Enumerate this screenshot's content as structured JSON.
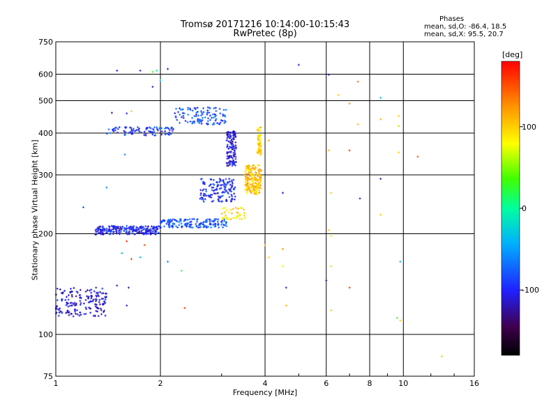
{
  "chart_data": {
    "type": "scatter",
    "title": "Tromsø 20171216 10:14:00-10:15:43",
    "subtitle": "RwPretec (8p)",
    "xlabel": "Frequency [MHz]",
    "ylabel": "Stationary phase Virtual Height [km]",
    "x_scale": "log",
    "y_scale": "log",
    "xlim": [
      1,
      16
    ],
    "ylim": [
      75,
      750
    ],
    "xticks": [
      "1",
      "2",
      "4",
      "6",
      "8",
      "10",
      "16"
    ],
    "yticks": [
      "75",
      "100",
      "200",
      "300",
      "400",
      "500",
      "600",
      "750"
    ],
    "grid": true,
    "phases": {
      "heading": "Phases",
      "o_line": "mean, sd,O: -86.4, 18.5",
      "x_line": "mean, sd,X:  95.5, 20.7"
    },
    "colorbar": {
      "label": "[deg]",
      "ticks": [
        "100",
        "0",
        "-100"
      ],
      "range": [
        -180,
        180
      ]
    },
    "series": [
      {
        "name": "O",
        "phase_mean": -86.4,
        "phase_sd": 18.5
      },
      {
        "name": "X",
        "phase_mean": 95.5,
        "phase_sd": 20.7
      }
    ],
    "traces": [
      {
        "x_range": [
          1.0,
          1.4
        ],
        "y_center": 125,
        "y_spread": 0.1,
        "phase": -110,
        "count": 170
      },
      {
        "x_range": [
          1.3,
          2.0
        ],
        "y_center": 205,
        "y_spread": 0.03,
        "phase": -100,
        "count": 220
      },
      {
        "x_range": [
          2.0,
          3.1
        ],
        "y_center": 215,
        "y_spread": 0.03,
        "phase": -80,
        "count": 160
      },
      {
        "x_range": [
          2.6,
          3.3
        ],
        "y_center": 270,
        "y_spread": 0.08,
        "phase": -95,
        "count": 140
      },
      {
        "x_range": [
          3.1,
          3.3
        ],
        "y_center": 360,
        "y_spread": 0.12,
        "phase": -110,
        "count": 130
      },
      {
        "x_range": [
          1.4,
          2.2
        ],
        "y_center": 405,
        "y_spread": 0.03,
        "phase": -90,
        "count": 90
      },
      {
        "x_range": [
          2.2,
          3.1
        ],
        "y_center": 450,
        "y_spread": 0.06,
        "phase": -80,
        "count": 110
      },
      {
        "x_range": [
          3.5,
          3.9
        ],
        "y_center": 290,
        "y_spread": 0.1,
        "phase": 105,
        "count": 200
      },
      {
        "x_range": [
          3.8,
          3.9
        ],
        "y_center": 380,
        "y_spread": 0.1,
        "phase": 100,
        "count": 60
      },
      {
        "x_range": [
          3.0,
          3.5
        ],
        "y_center": 230,
        "y_spread": 0.04,
        "phase": 90,
        "count": 40
      }
    ],
    "scattered_points": [
      {
        "x": 1.5,
        "y": 615,
        "phase": -110
      },
      {
        "x": 1.75,
        "y": 615,
        "phase": -100
      },
      {
        "x": 1.9,
        "y": 610,
        "phase": 40
      },
      {
        "x": 1.95,
        "y": 615,
        "phase": 0
      },
      {
        "x": 2.1,
        "y": 622,
        "phase": -110
      },
      {
        "x": 1.9,
        "y": 550,
        "phase": -120
      },
      {
        "x": 2.0,
        "y": 575,
        "phase": -30
      },
      {
        "x": 5.0,
        "y": 640,
        "phase": -110
      },
      {
        "x": 6.1,
        "y": 598,
        "phase": -110
      },
      {
        "x": 7.4,
        "y": 570,
        "phase": 140
      },
      {
        "x": 8.6,
        "y": 510,
        "phase": -30
      },
      {
        "x": 6.5,
        "y": 520,
        "phase": 100
      },
      {
        "x": 7.0,
        "y": 490,
        "phase": 120
      },
      {
        "x": 9.7,
        "y": 450,
        "phase": 100
      },
      {
        "x": 9.7,
        "y": 420,
        "phase": 60
      },
      {
        "x": 7.4,
        "y": 425,
        "phase": 110
      },
      {
        "x": 8.6,
        "y": 440,
        "phase": 110
      },
      {
        "x": 6.1,
        "y": 355,
        "phase": 110
      },
      {
        "x": 7.0,
        "y": 355,
        "phase": 160
      },
      {
        "x": 9.7,
        "y": 350,
        "phase": 100
      },
      {
        "x": 11.0,
        "y": 340,
        "phase": 150
      },
      {
        "x": 8.6,
        "y": 292,
        "phase": -120
      },
      {
        "x": 4.1,
        "y": 380,
        "phase": 120
      },
      {
        "x": 4.5,
        "y": 265,
        "phase": -120
      },
      {
        "x": 6.2,
        "y": 265,
        "phase": 100
      },
      {
        "x": 7.5,
        "y": 255,
        "phase": -120
      },
      {
        "x": 8.6,
        "y": 228,
        "phase": 100
      },
      {
        "x": 6.1,
        "y": 205,
        "phase": 100
      },
      {
        "x": 6.2,
        "y": 197,
        "phase": 90
      },
      {
        "x": 4.0,
        "y": 185,
        "phase": 120
      },
      {
        "x": 4.5,
        "y": 180,
        "phase": 120
      },
      {
        "x": 4.1,
        "y": 170,
        "phase": 100
      },
      {
        "x": 4.5,
        "y": 160,
        "phase": 90
      },
      {
        "x": 6.2,
        "y": 160,
        "phase": 60
      },
      {
        "x": 9.8,
        "y": 165,
        "phase": -40
      },
      {
        "x": 4.6,
        "y": 138,
        "phase": -110
      },
      {
        "x": 6.0,
        "y": 145,
        "phase": -110
      },
      {
        "x": 7.0,
        "y": 138,
        "phase": 160
      },
      {
        "x": 4.6,
        "y": 122,
        "phase": 110
      },
      {
        "x": 6.2,
        "y": 118,
        "phase": 100
      },
      {
        "x": 9.6,
        "y": 112,
        "phase": 40
      },
      {
        "x": 9.8,
        "y": 110,
        "phase": 100
      },
      {
        "x": 12.9,
        "y": 86,
        "phase": 100
      },
      {
        "x": 2.3,
        "y": 155,
        "phase": 20
      },
      {
        "x": 2.35,
        "y": 120,
        "phase": 160
      },
      {
        "x": 1.6,
        "y": 190,
        "phase": 160
      },
      {
        "x": 1.8,
        "y": 185,
        "phase": 150
      },
      {
        "x": 1.75,
        "y": 170,
        "phase": -40
      },
      {
        "x": 2.1,
        "y": 165,
        "phase": -60
      },
      {
        "x": 1.55,
        "y": 175,
        "phase": -40
      },
      {
        "x": 1.5,
        "y": 140,
        "phase": -120
      },
      {
        "x": 1.62,
        "y": 138,
        "phase": -120
      },
      {
        "x": 1.6,
        "y": 122,
        "phase": -110
      },
      {
        "x": 1.65,
        "y": 168,
        "phase": 160
      },
      {
        "x": 1.2,
        "y": 240,
        "phase": -80
      },
      {
        "x": 1.4,
        "y": 275,
        "phase": -60
      },
      {
        "x": 1.58,
        "y": 345,
        "phase": -60
      },
      {
        "x": 1.6,
        "y": 458,
        "phase": -100
      },
      {
        "x": 1.65,
        "y": 465,
        "phase": 100
      },
      {
        "x": 1.45,
        "y": 460,
        "phase": -120
      }
    ]
  }
}
